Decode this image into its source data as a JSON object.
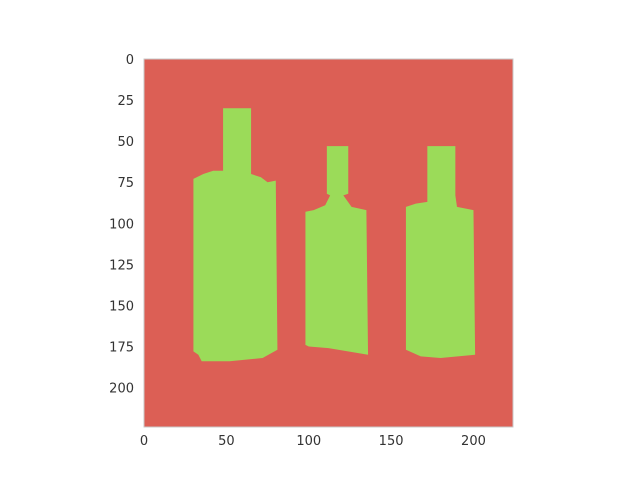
{
  "colors": {
    "background": "#DC5F55",
    "mask": "#9BDB59",
    "spine": "#C9C9C9",
    "tick_text": "#333333"
  },
  "chart_data": {
    "type": "heatmap",
    "description_kind": "segmentation-mask image plot",
    "image_size": [
      224,
      224
    ],
    "xlim": [
      0,
      224
    ],
    "ylim": [
      224,
      0
    ],
    "x_ticks": [
      0,
      50,
      100,
      150,
      200
    ],
    "y_ticks": [
      0,
      25,
      50,
      75,
      100,
      125,
      150,
      175,
      200
    ],
    "grid": false,
    "legend": "none",
    "regions": [
      {
        "class": "bottle",
        "outline": [
          [
            48,
            30
          ],
          [
            65,
            30
          ],
          [
            65,
            70
          ],
          [
            71,
            72
          ],
          [
            75,
            75
          ],
          [
            80,
            74
          ],
          [
            81,
            177
          ],
          [
            72,
            182
          ],
          [
            52,
            184
          ],
          [
            35,
            184
          ],
          [
            33,
            180
          ],
          [
            30,
            178
          ],
          [
            30,
            73
          ],
          [
            36,
            70
          ],
          [
            42,
            68
          ],
          [
            48,
            68
          ]
        ]
      },
      {
        "class": "bottle",
        "outline": [
          [
            111,
            53
          ],
          [
            124,
            53
          ],
          [
            124,
            82
          ],
          [
            121,
            83
          ],
          [
            126,
            90
          ],
          [
            135,
            92
          ],
          [
            136,
            180
          ],
          [
            112,
            176
          ],
          [
            100,
            175
          ],
          [
            98,
            174
          ],
          [
            98,
            93
          ],
          [
            103,
            92
          ],
          [
            110,
            89
          ],
          [
            113,
            83
          ],
          [
            111,
            82
          ]
        ]
      },
      {
        "class": "bottle",
        "outline": [
          [
            172,
            53
          ],
          [
            189,
            53
          ],
          [
            189,
            83
          ],
          [
            190,
            90
          ],
          [
            200,
            92
          ],
          [
            201,
            180
          ],
          [
            180,
            182
          ],
          [
            168,
            181
          ],
          [
            159,
            177
          ],
          [
            159,
            90
          ],
          [
            165,
            88
          ],
          [
            172,
            87
          ]
        ]
      }
    ]
  }
}
